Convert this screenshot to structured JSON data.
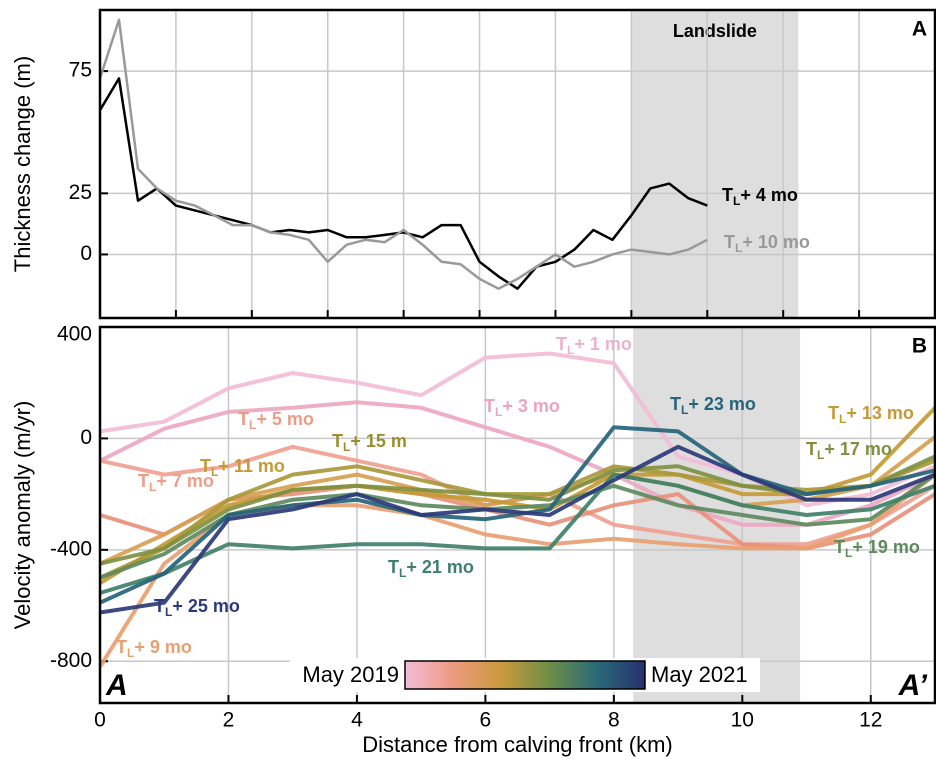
{
  "chart_data": [
    {
      "type": "line",
      "panel_label": "A",
      "ylabel": "Thickness change (m)",
      "xlim": [
        0,
        11
      ],
      "xticks": [
        1,
        2,
        3,
        4,
        5,
        6,
        7,
        8,
        9,
        10
      ],
      "ylim": [
        -26,
        100
      ],
      "yticks": [
        0,
        25,
        75
      ],
      "grid": true,
      "shaded_region": {
        "label": "Landslide",
        "x": [
          7.0,
          9.2
        ],
        "color": "#dedede"
      },
      "x": [
        0,
        0.25,
        0.5,
        0.75,
        1,
        1.25,
        1.5,
        1.75,
        2,
        2.25,
        2.5,
        2.75,
        3,
        3.25,
        3.5,
        3.75,
        4,
        4.25,
        4.5,
        4.75,
        5,
        5.25,
        5.5,
        5.75,
        6,
        6.25,
        6.5,
        6.75,
        7,
        7.25,
        7.5,
        7.75,
        8
      ],
      "series": [
        {
          "label": {
            "text": "T",
            "subscript": "L",
            "suffix": "+ 4 mo"
          },
          "color": "#000000",
          "values": [
            59,
            72,
            22,
            27,
            20,
            18,
            16,
            14,
            12,
            9,
            10,
            9,
            10,
            7,
            7,
            8,
            9,
            7,
            12,
            12,
            -3,
            -9,
            -14,
            -5,
            -3,
            2,
            10,
            6,
            16,
            27,
            29,
            23,
            20
          ]
        },
        {
          "label": {
            "text": "T",
            "subscript": "L",
            "suffix": "+ 10 mo"
          },
          "color": "#999999",
          "values": [
            72,
            96,
            35,
            27,
            22,
            20,
            16,
            12,
            12,
            9,
            8,
            6,
            -3,
            4,
            6,
            5,
            10,
            4,
            -3,
            -4,
            -10,
            -14,
            -10,
            -5,
            0,
            -5,
            -3,
            0,
            2,
            1,
            0,
            2,
            6
          ]
        }
      ]
    },
    {
      "type": "line",
      "panel_label": "B",
      "ylabel": "Velocity anomaly (m/yr)",
      "xlabel": "Distance from calving front (km)",
      "xlim": [
        0,
        13
      ],
      "xticks": [
        0,
        2,
        4,
        6,
        8,
        10,
        12
      ],
      "ylim": [
        -950,
        400
      ],
      "yticks": [
        -800,
        -400,
        0,
        400
      ],
      "grid": true,
      "shaded_region": {
        "x": [
          8.3,
          10.9
        ],
        "color": "#dedede"
      },
      "corner_labels": [
        "A",
        "A’"
      ],
      "colorbar": {
        "left_label": "May 2019",
        "right_label": "May 2021",
        "colors": [
          "#f3bcd9",
          "#ee9a80",
          "#c99a3c",
          "#6f8e46",
          "#2a6a78",
          "#27306f"
        ]
      },
      "x": [
        0,
        1,
        2,
        3,
        4,
        5,
        6,
        7,
        8,
        9,
        10,
        11,
        12,
        13
      ],
      "series": [
        {
          "label": {
            "text": "T",
            "subscript": "L",
            "suffix": "+ 1 mo"
          },
          "color": "#f2bcd6",
          "values": [
            25,
            60,
            180,
            235,
            200,
            155,
            290,
            305,
            270,
            -65,
            -130,
            -240,
            -200,
            -100
          ]
        },
        {
          "label": {
            "text": "T",
            "subscript": "L",
            "suffix": "+ 3 mo"
          },
          "color": "#eda7c0",
          "values": [
            -80,
            35,
            95,
            110,
            130,
            110,
            40,
            -30,
            -130,
            -240,
            -310,
            -310,
            -240,
            -130
          ]
        },
        {
          "label": {
            "text": "T",
            "subscript": "L",
            "suffix": "+ 5 mo"
          },
          "color": "#f0a090",
          "values": [
            -80,
            -130,
            -100,
            -30,
            -80,
            -130,
            -240,
            -200,
            -310,
            -345,
            -380,
            -380,
            -310,
            -170
          ]
        },
        {
          "label": {
            "text": "T",
            "subscript": "L",
            "suffix": "+ 7 mo"
          },
          "color": "#e8917a",
          "values": [
            -275,
            -345,
            -220,
            -200,
            -170,
            -200,
            -255,
            -310,
            -240,
            -200,
            -380,
            -395,
            -345,
            -200
          ]
        },
        {
          "label": {
            "text": "T",
            "subscript": "L",
            "suffix": "+ 9 mo"
          },
          "color": "#e8a070",
          "values": [
            -820,
            -450,
            -275,
            -240,
            -240,
            -275,
            -345,
            -380,
            -360,
            -380,
            -395,
            -395,
            -310,
            -130
          ]
        },
        {
          "label": {
            "text": "T",
            "subscript": "L",
            "suffix": "+ 11 mo"
          },
          "color": "#d6a050",
          "values": [
            -450,
            -345,
            -220,
            -170,
            -130,
            -185,
            -240,
            -200,
            -130,
            -170,
            -240,
            -220,
            -170,
            5
          ]
        },
        {
          "label": {
            "text": "T",
            "subscript": "L",
            "suffix": "+ 13 mo"
          },
          "color": "#c49a35",
          "values": [
            -520,
            -380,
            -240,
            -185,
            -170,
            -200,
            -220,
            -255,
            -130,
            -130,
            -200,
            -200,
            -130,
            110
          ]
        },
        {
          "label": {
            "text": "T",
            "subscript": "L",
            "suffix": "+ 15 m"
          },
          "color": "#a8983a",
          "values": [
            -500,
            -395,
            -220,
            -130,
            -100,
            -150,
            -200,
            -200,
            -100,
            -130,
            -170,
            -185,
            -170,
            -80
          ]
        },
        {
          "label": {
            "text": "T",
            "subscript": "L",
            "suffix": "+ 17 mo"
          },
          "color": "#7f9040",
          "values": [
            -450,
            -395,
            -255,
            -185,
            -170,
            -185,
            -200,
            -220,
            -115,
            -100,
            -170,
            -200,
            -170,
            -65
          ]
        },
        {
          "label": {
            "text": "T",
            "subscript": "L",
            "suffix": "+ 19 mo"
          },
          "color": "#5e8a5e",
          "values": [
            -500,
            -415,
            -275,
            -220,
            -200,
            -240,
            -255,
            -240,
            -170,
            -240,
            -275,
            -310,
            -290,
            -130
          ]
        },
        {
          "label": {
            "text": "T",
            "subscript": "L",
            "suffix": "+ 21 mo"
          },
          "color": "#3f8068",
          "values": [
            -555,
            -485,
            -380,
            -395,
            -380,
            -380,
            -395,
            -395,
            -130,
            -170,
            -240,
            -275,
            -255,
            -170
          ]
        },
        {
          "label": {
            "text": "T",
            "subscript": "L",
            "suffix": "+ 23 mo"
          },
          "color": "#25647a",
          "values": [
            -590,
            -485,
            -275,
            -240,
            -220,
            -275,
            -290,
            -255,
            40,
            25,
            -130,
            -200,
            -170,
            -115
          ]
        },
        {
          "label": {
            "text": "T",
            "subscript": "L",
            "suffix": "+ 25 mo"
          },
          "color": "#2b3a78",
          "values": [
            -625,
            -590,
            -290,
            -255,
            -200,
            -275,
            -255,
            -275,
            -150,
            -30,
            -130,
            -220,
            -220,
            -130
          ]
        }
      ]
    }
  ]
}
